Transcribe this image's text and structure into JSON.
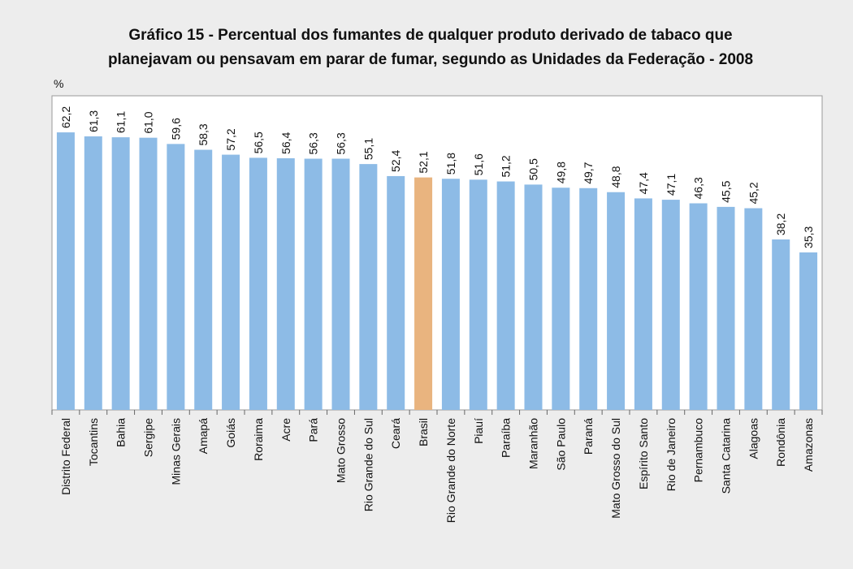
{
  "chart_data": {
    "type": "bar",
    "title": [
      "Gráfico 15 - Percentual dos fumantes de qualquer produto derivado de tabaco que",
      "planejavam ou pensavam em parar de fumar, segundo as Unidades da Federação - 2008"
    ],
    "y_label": "%",
    "categories": [
      "Distrito Federal",
      "Tocantins",
      "Bahia",
      "Sergipe",
      "Minas Gerais",
      "Amapá",
      "Goiás",
      "Roraima",
      "Acre",
      "Pará",
      "Mato Grosso",
      "Rio Grande do Sul",
      "Ceará",
      "Brasil",
      "Rio Grande do Norte",
      "Piauí",
      "Paraíba",
      "Maranhão",
      "São Paulo",
      "Paraná",
      "Mato Grosso do Sul",
      "Espírito Santo",
      "Rio de Janeiro",
      "Pernambuco",
      "Santa Catarina",
      "Alagoas",
      "Rondônia",
      "Amazonas"
    ],
    "values": [
      62.2,
      61.3,
      61.1,
      61.0,
      59.6,
      58.3,
      57.2,
      56.5,
      56.4,
      56.3,
      56.3,
      55.1,
      52.4,
      52.1,
      51.8,
      51.6,
      51.2,
      50.5,
      49.8,
      49.7,
      48.8,
      47.4,
      47.1,
      46.3,
      45.5,
      45.2,
      38.2,
      35.3
    ],
    "value_labels": [
      "62,2",
      "61,3",
      "61,1",
      "61,0",
      "59,6",
      "58,3",
      "57,2",
      "56,5",
      "56,4",
      "56,3",
      "56,3",
      "55,1",
      "52,4",
      "52,1",
      "51,8",
      "51,6",
      "51,2",
      "50,5",
      "49,8",
      "49,7",
      "48,8",
      "47,4",
      "47,1",
      "46,3",
      "45,5",
      "45,2",
      "38,2",
      "35,3"
    ],
    "colors": [
      "#8dbbe6",
      "#8dbbe6",
      "#8dbbe6",
      "#8dbbe6",
      "#8dbbe6",
      "#8dbbe6",
      "#8dbbe6",
      "#8dbbe6",
      "#8dbbe6",
      "#8dbbe6",
      "#8dbbe6",
      "#8dbbe6",
      "#8dbbe6",
      "#e9b47f",
      "#8dbbe6",
      "#8dbbe6",
      "#8dbbe6",
      "#8dbbe6",
      "#8dbbe6",
      "#8dbbe6",
      "#8dbbe6",
      "#8dbbe6",
      "#8dbbe6",
      "#8dbbe6",
      "#8dbbe6",
      "#8dbbe6",
      "#8dbbe6",
      "#8dbbe6"
    ],
    "ylim": [
      0,
      70.4
    ]
  }
}
